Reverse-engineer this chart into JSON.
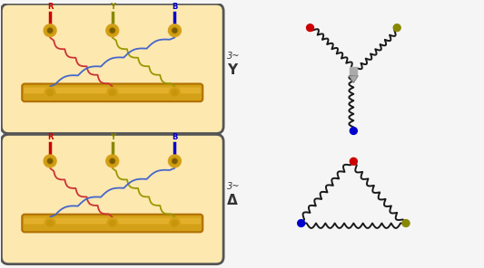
{
  "fig_bg": "#f5f5f5",
  "box_fill": "#fde8b0",
  "box_edge": "#555555",
  "phase_colors": [
    "#cc0000",
    "#888800",
    "#0000cc"
  ],
  "phase_labels": [
    "R",
    "Y",
    "B"
  ],
  "coil_colors": [
    "#cc3333",
    "#4466cc",
    "#999900"
  ],
  "label_Y": "Y",
  "label_Delta": "Δ",
  "label_3phase": "3~",
  "busbar_color": "#d4a017",
  "terminal_color": "#d4a017",
  "terminal_inner": "#c8960a",
  "schematic_coil_color": "#1a1a1a",
  "neutral_color": "#888888"
}
